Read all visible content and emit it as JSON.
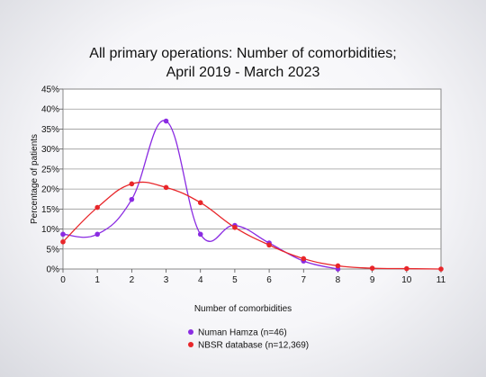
{
  "chart_data": {
    "type": "line",
    "title_lines": [
      "All primary operations: Number of comorbidities;",
      "April 2019 - March 2023"
    ],
    "xlabel": "Number of comorbidities",
    "ylabel": "Percentage of patients",
    "x": [
      0,
      1,
      2,
      3,
      4,
      5,
      6,
      7,
      8,
      9,
      10,
      11
    ],
    "xlim": [
      0,
      11
    ],
    "ylim": [
      0,
      45
    ],
    "yticks": [
      "0%",
      "5%",
      "10%",
      "15%",
      "20%",
      "25%",
      "30%",
      "35%",
      "40%",
      "45%"
    ],
    "xticks": [
      "0",
      "1",
      "2",
      "3",
      "4",
      "5",
      "6",
      "7",
      "8",
      "9",
      "10",
      "11"
    ],
    "grid": true,
    "legend_position": "bottom",
    "series": [
      {
        "name": "Numan Hamza (n=46)",
        "color": "#8a2be2",
        "points": [
          {
            "x": 0,
            "y": 8.7
          },
          {
            "x": 1,
            "y": 8.7
          },
          {
            "x": 2,
            "y": 17.4
          },
          {
            "x": 3,
            "y": 37.0
          },
          {
            "x": 4,
            "y": 8.7
          },
          {
            "x": 5,
            "y": 10.9
          },
          {
            "x": 6,
            "y": 6.5
          },
          {
            "x": 7,
            "y": 2.0
          },
          {
            "x": 8,
            "y": 0
          }
        ]
      },
      {
        "name": "NBSR database (n=12,369)",
        "color": "#e8262a",
        "points": [
          {
            "x": 0,
            "y": 6.8
          },
          {
            "x": 1,
            "y": 15.4
          },
          {
            "x": 2,
            "y": 21.3
          },
          {
            "x": 3,
            "y": 20.4
          },
          {
            "x": 4,
            "y": 16.6
          },
          {
            "x": 5,
            "y": 10.4
          },
          {
            "x": 6,
            "y": 6.0
          },
          {
            "x": 7,
            "y": 2.6
          },
          {
            "x": 8,
            "y": 0.8
          },
          {
            "x": 9,
            "y": 0.2
          },
          {
            "x": 10,
            "y": 0.1
          },
          {
            "x": 11,
            "y": 0
          }
        ]
      }
    ]
  }
}
